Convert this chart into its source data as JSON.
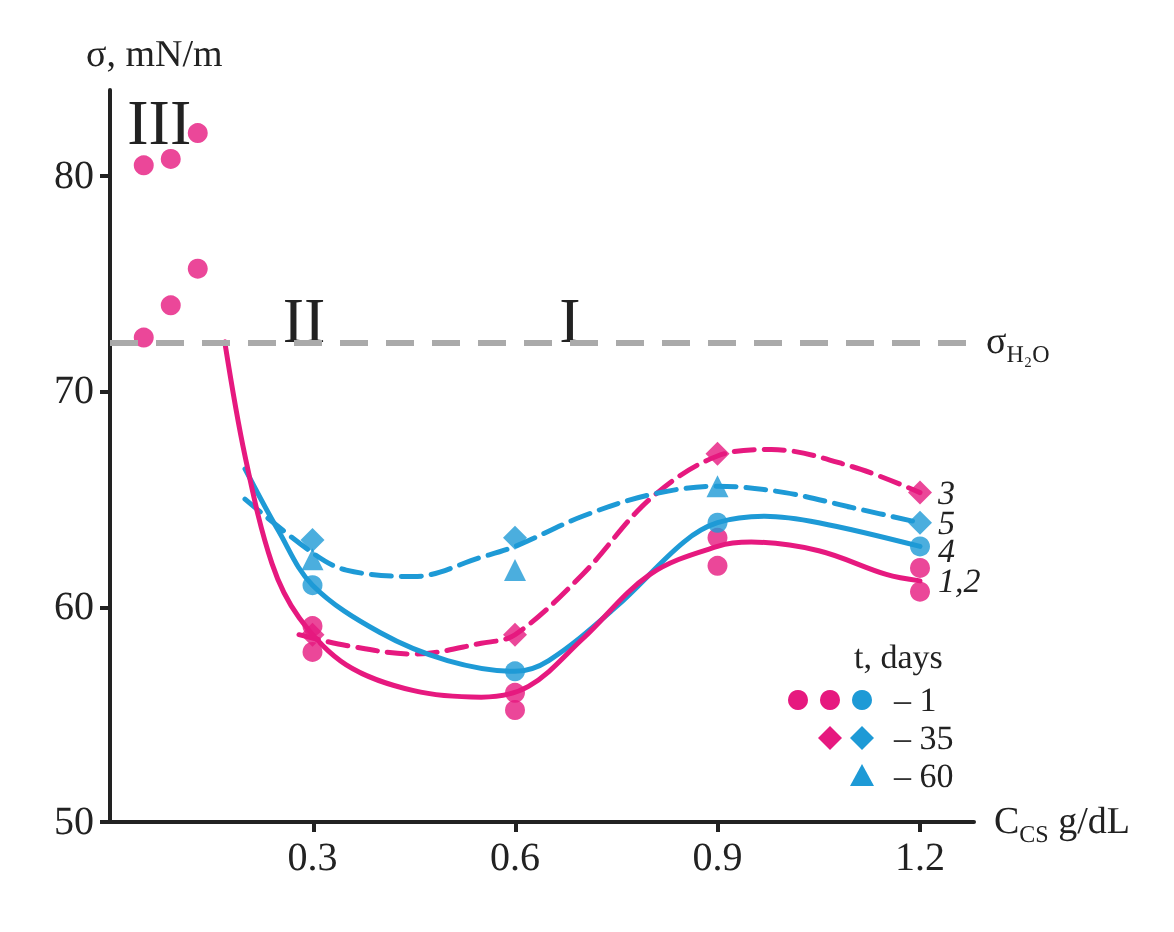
{
  "chart_data": {
    "type": "line",
    "xlabel": "C$_{CS}$ g/dL",
    "ylabel": "σ, mN/m",
    "legend_title": "t, days",
    "xlim": [
      0,
      1.28
    ],
    "xticks": [
      0.3,
      0.6,
      0.9,
      1.2
    ],
    "ylim": [
      50,
      84
    ],
    "yticks": [
      50,
      60,
      70,
      80
    ],
    "grid": false,
    "legend": "bottom right",
    "annotations": [
      "III",
      "II",
      "I"
    ],
    "ref_lines": [
      {
        "axis": "y",
        "value": 72.3,
        "label": "σ$_{H₂O}$",
        "color": "#aaaaaa",
        "line_style": "dashed"
      }
    ],
    "series": [
      {
        "name": "3",
        "color": "#e6197f",
        "line_style": "dashed",
        "x": [
          0.28,
          0.35,
          0.45,
          0.55,
          0.6,
          0.7,
          0.8,
          0.9,
          0.98,
          1.1,
          1.2
        ],
        "values": [
          58.7,
          58.2,
          57.8,
          58.3,
          58.7,
          61.5,
          65.0,
          67.0,
          67.3,
          66.5,
          65.3
        ]
      },
      {
        "name": "5",
        "color": "#1e9ad6",
        "line_style": "dashed",
        "x": [
          0.2,
          0.3,
          0.35,
          0.45,
          0.55,
          0.6,
          0.7,
          0.8,
          0.9,
          1.0,
          1.1,
          1.2
        ],
        "values": [
          65.0,
          62.5,
          61.7,
          61.4,
          62.3,
          62.8,
          64.2,
          65.2,
          65.6,
          65.3,
          64.6,
          63.9
        ]
      },
      {
        "name": "4",
        "color": "#1e9ad6",
        "line_style": "solid",
        "x": [
          0.2,
          0.25,
          0.3,
          0.4,
          0.5,
          0.6,
          0.65,
          0.75,
          0.85,
          0.9,
          0.97,
          1.05,
          1.2
        ],
        "values": [
          66.4,
          63.5,
          61.0,
          58.8,
          57.5,
          57.0,
          57.5,
          60.0,
          63.0,
          63.9,
          64.2,
          63.9,
          62.8
        ]
      },
      {
        "name": "1,2",
        "color": "#e6197f",
        "line_style": "solid",
        "x": [
          0.17,
          0.2,
          0.24,
          0.28,
          0.35,
          0.45,
          0.55,
          0.62,
          0.7,
          0.8,
          0.9,
          0.95,
          1.05,
          1.15,
          1.2
        ],
        "values": [
          72.3,
          67.0,
          62.0,
          59.5,
          57.3,
          56.1,
          55.8,
          56.3,
          58.5,
          61.5,
          62.8,
          63.0,
          62.6,
          61.5,
          61.2
        ]
      },
      {
        "type": "scatter",
        "color": "#e6197f",
        "marker": "circle",
        "x": [
          0.05,
          0.09,
          0.13,
          0.3,
          0.6,
          0.9,
          1.2
        ],
        "values": [
          72.5,
          74.0,
          75.7,
          57.9,
          55.2,
          63.2,
          60.7
        ]
      },
      {
        "type": "scatter",
        "color": "#e6197f",
        "marker": "circle",
        "x": [
          0.05,
          0.09,
          0.13,
          0.3,
          0.6,
          0.9,
          1.2
        ],
        "values": [
          80.5,
          80.8,
          82.0,
          59.1,
          56.0,
          61.9,
          61.8
        ]
      },
      {
        "name": "– 1",
        "type": "scatter",
        "color": "#1e9ad6",
        "marker": "circle",
        "x": [
          0.3,
          0.6,
          0.9,
          1.2
        ],
        "values": [
          61.0,
          57.0,
          63.9,
          62.8
        ]
      },
      {
        "type": "scatter",
        "color": "#e6197f",
        "marker": "diamond",
        "x": [
          0.3,
          0.6,
          0.9,
          1.2
        ],
        "values": [
          58.7,
          58.7,
          67.1,
          65.3
        ]
      },
      {
        "name": "– 35",
        "type": "scatter",
        "color": "#1e9ad6",
        "marker": "diamond",
        "x": [
          0.3,
          0.6,
          1.2
        ],
        "values": [
          63.1,
          63.2,
          63.9
        ]
      },
      {
        "name": "– 60",
        "type": "scatter",
        "color": "#1e9ad6",
        "marker": "triangle",
        "x": [
          0.3,
          0.6,
          0.9
        ],
        "values": [
          62.2,
          61.7,
          65.6
        ]
      }
    ]
  }
}
